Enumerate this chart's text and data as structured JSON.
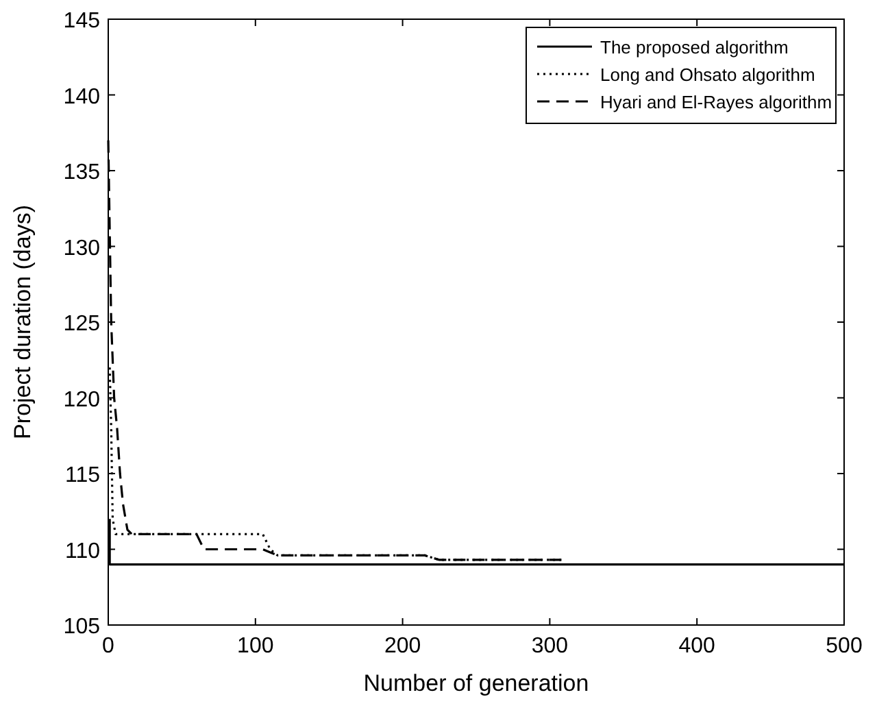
{
  "chart_data": {
    "type": "line",
    "xlabel": "Number of generation",
    "ylabel": "Project duration (days)",
    "xlim": [
      0,
      500
    ],
    "ylim": [
      105,
      145
    ],
    "xticks": [
      0,
      100,
      200,
      300,
      400,
      500
    ],
    "yticks": [
      105,
      110,
      115,
      120,
      125,
      130,
      135,
      140,
      145
    ],
    "legend": "top right",
    "grid": false,
    "series": [
      {
        "name": "The proposed algorithm",
        "color": "#000000",
        "line_style": "solid",
        "x": [
          1,
          1,
          500
        ],
        "values": [
          112,
          109,
          109
        ]
      },
      {
        "name": "Long and Ohsato algorithm",
        "color": "#000000",
        "line_style": "dotted",
        "x": [
          1,
          2,
          3,
          5,
          105,
          110,
          115,
          215,
          225,
          310
        ],
        "values": [
          122,
          118,
          112,
          111,
          111,
          110,
          109.6,
          109.6,
          109.3,
          109.3
        ]
      },
      {
        "name": "Hyari and El-Rayes algorithm",
        "color": "#000000",
        "line_style": "dashed",
        "x": [
          0,
          2,
          4,
          6,
          8,
          10,
          13,
          16,
          60,
          65,
          105,
          110,
          115,
          215,
          225,
          310
        ],
        "values": [
          137,
          125,
          120,
          118,
          115,
          113,
          111.3,
          111,
          111,
          110,
          110,
          109.8,
          109.6,
          109.6,
          109.3,
          109.3
        ]
      }
    ]
  }
}
